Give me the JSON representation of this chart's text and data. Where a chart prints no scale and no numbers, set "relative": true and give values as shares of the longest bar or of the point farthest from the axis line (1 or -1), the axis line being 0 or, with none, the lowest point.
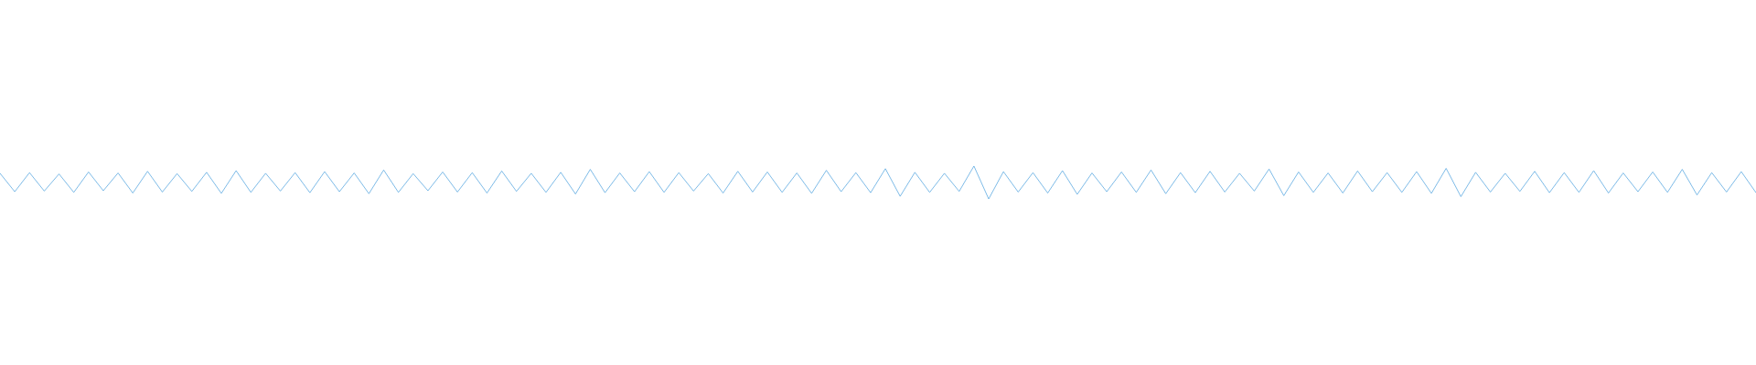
{
  "chart_data": {
    "type": "line",
    "relative": true,
    "color": "#5da9e1",
    "categories": [
      null,
      null,
      null,
      null,
      null,
      null,
      null,
      null,
      null,
      null,
      null,
      null,
      null,
      null,
      null,
      null,
      null,
      null,
      null,
      null,
      null,
      null,
      null,
      null,
      null,
      null,
      null,
      null,
      null,
      null,
      null,
      null,
      null,
      null,
      null,
      null,
      null,
      null,
      null,
      null,
      null,
      null,
      null,
      null,
      null,
      null,
      null,
      null,
      null,
      null,
      null,
      null,
      null,
      null,
      null,
      null,
      null,
      null,
      null,
      null,
      null,
      null,
      null,
      null,
      null,
      null,
      null,
      null,
      null,
      null,
      null,
      null,
      null,
      null,
      null,
      null,
      null,
      null,
      null,
      null,
      null,
      null,
      null,
      null,
      null,
      null,
      null,
      null,
      null,
      null,
      null,
      null,
      null,
      null,
      null,
      null,
      null,
      null,
      null,
      null,
      null,
      null,
      null,
      null,
      null,
      null,
      null,
      null,
      null,
      null,
      null,
      null,
      null,
      null,
      null,
      null,
      null,
      null,
      null,
      null
    ],
    "values": [
      0.78,
      0.22,
      0.8,
      0.24,
      0.76,
      0.2,
      0.82,
      0.25,
      0.79,
      0.18,
      0.84,
      0.21,
      0.77,
      0.23,
      0.81,
      0.17,
      0.86,
      0.2,
      0.78,
      0.24,
      0.8,
      0.19,
      0.83,
      0.22,
      0.79,
      0.16,
      0.88,
      0.2,
      0.77,
      0.25,
      0.82,
      0.21,
      0.8,
      0.18,
      0.85,
      0.23,
      0.78,
      0.2,
      0.81,
      0.15,
      0.9,
      0.19,
      0.79,
      0.22,
      0.83,
      0.2,
      0.8,
      0.24,
      0.77,
      0.18,
      0.84,
      0.21,
      0.82,
      0.2,
      0.79,
      0.17,
      0.87,
      0.22,
      0.8,
      0.19,
      0.92,
      0.08,
      0.81,
      0.2,
      0.78,
      0.23,
      1,
      0.0,
      0.83,
      0.21,
      0.8,
      0.18,
      0.86,
      0.14,
      0.79,
      0.22,
      0.82,
      0.2,
      0.88,
      0.16,
      0.8,
      0.19,
      0.84,
      0.21,
      0.78,
      0.24,
      0.91,
      0.1,
      0.82,
      0.2,
      0.79,
      0.18,
      0.85,
      0.22,
      0.8,
      0.2,
      0.83,
      0.17,
      0.93,
      0.07,
      0.81,
      0.21,
      0.78,
      0.23,
      0.84,
      0.19,
      0.8,
      0.2,
      0.86,
      0.18,
      0.79,
      0.22,
      0.82,
      0.2,
      0.9,
      0.12,
      0.8,
      0.21,
      0.83,
      0.19
    ]
  }
}
